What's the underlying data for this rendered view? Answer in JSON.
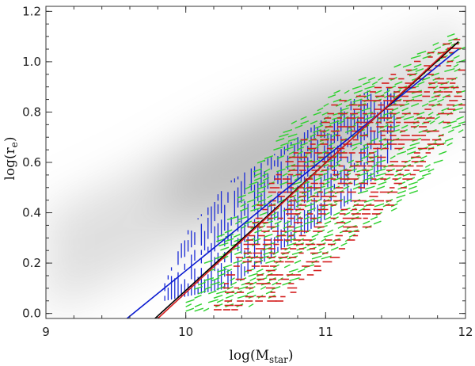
{
  "chart_data": {
    "type": "scatter",
    "title": "",
    "xlabel": "log(M",
    "xlabel_sub": "star",
    "xlabel_close": ")",
    "ylabel": "log(r",
    "ylabel_sub": "e",
    "ylabel_close": ")",
    "xlim": [
      9,
      12
    ],
    "ylim": [
      -0.02,
      1.22
    ],
    "xticks": [
      9,
      10,
      11,
      12
    ],
    "xtick_labels": [
      "9",
      "10",
      "11",
      "12"
    ],
    "yticks": [
      0.0,
      0.2,
      0.4,
      0.6,
      0.8,
      1.0,
      1.2
    ],
    "ytick_labels": [
      "0.0",
      "0.2",
      "0.4",
      "0.6",
      "0.8",
      "1.0",
      "1.2"
    ],
    "grid": false,
    "background_density": {
      "description_color": "#9a9a9a",
      "ridge": [
        [
          9.0,
          0.2
        ],
        [
          9.5,
          0.33
        ],
        [
          10.0,
          0.47
        ],
        [
          10.5,
          0.6
        ],
        [
          11.0,
          0.72
        ],
        [
          11.5,
          0.85
        ],
        [
          12.0,
          0.98
        ]
      ],
      "peak": [
        10.6,
        0.63
      ]
    },
    "series": [
      {
        "color": "#1a2bd6",
        "marker": "vertical-hatch",
        "region": {
          "lower": [
            [
              9.85,
              0.05
            ],
            [
              10.3,
              0.1
            ],
            [
              10.8,
              0.3
            ],
            [
              11.2,
              0.45
            ],
            [
              11.45,
              0.6
            ],
            [
              11.5,
              0.75
            ]
          ],
          "upper": [
            [
              9.85,
              0.12
            ],
            [
              10.0,
              0.32
            ],
            [
              10.3,
              0.52
            ],
            [
              10.6,
              0.62
            ],
            [
              11.0,
              0.78
            ],
            [
              11.4,
              0.92
            ],
            [
              11.5,
              0.88
            ]
          ]
        }
      },
      {
        "color": "#2fd12f",
        "marker": "slanted-dash",
        "region": {
          "lower": [
            [
              9.95,
              0.0
            ],
            [
              10.5,
              0.03
            ],
            [
              11.0,
              0.22
            ],
            [
              11.5,
              0.42
            ],
            [
              11.95,
              0.7
            ]
          ],
          "upper": [
            [
              10.0,
              0.05
            ],
            [
              10.35,
              0.48
            ],
            [
              10.7,
              0.75
            ],
            [
              11.1,
              0.9
            ],
            [
              11.5,
              1.0
            ],
            [
              11.95,
              1.14
            ]
          ]
        }
      },
      {
        "color": "#d41d1d",
        "marker": "horizontal-dash",
        "region": {
          "lower": [
            [
              10.2,
              0.0
            ],
            [
              10.7,
              0.05
            ],
            [
              11.2,
              0.3
            ],
            [
              11.7,
              0.58
            ],
            [
              11.95,
              0.82
            ]
          ],
          "upper": [
            [
              10.2,
              0.05
            ],
            [
              10.6,
              0.55
            ],
            [
              11.0,
              0.82
            ],
            [
              11.5,
              0.96
            ],
            [
              11.95,
              1.12
            ]
          ]
        }
      }
    ],
    "fit_lines": [
      {
        "color": "#0a1ad0",
        "x": [
          9.58,
          11.95
        ],
        "y": [
          -0.02,
          1.05
        ]
      },
      {
        "color": "#000000",
        "x": [
          9.78,
          11.95
        ],
        "y": [
          -0.02,
          1.08
        ]
      },
      {
        "color": "#d41d1d",
        "x": [
          9.8,
          11.9
        ],
        "y": [
          -0.02,
          1.06
        ]
      }
    ]
  }
}
